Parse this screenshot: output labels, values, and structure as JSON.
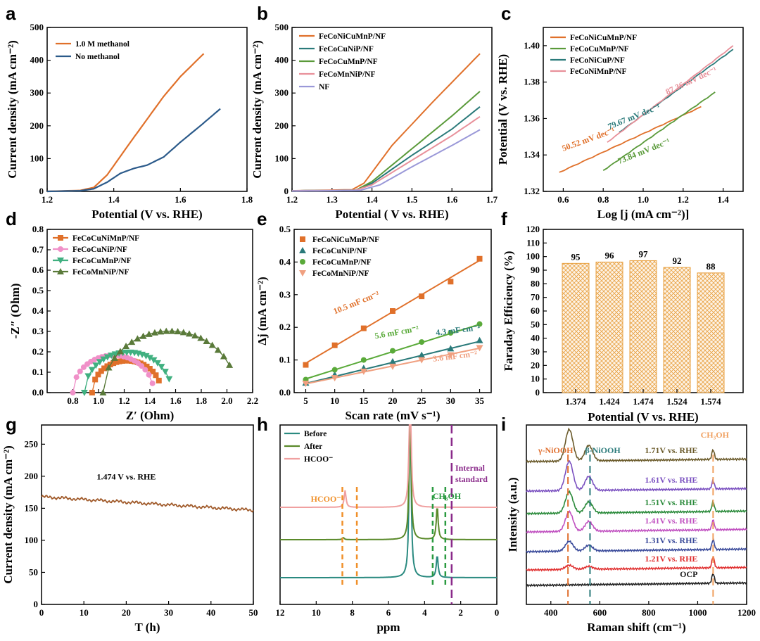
{
  "chart_data": [
    {
      "id": "a",
      "type": "line",
      "panel_label": "a",
      "xlabel": "Potential (V vs. RHE)",
      "ylabel": "Current density (mA cm⁻²)",
      "xlim": [
        1.2,
        1.8
      ],
      "ylim": [
        0,
        500
      ],
      "xticks": [
        1.2,
        1.4,
        1.6,
        1.8
      ],
      "yticks": [
        0,
        100,
        200,
        300,
        400,
        500
      ],
      "series": [
        {
          "name": "1.0 M methanol",
          "color": "#e0702a",
          "points": [
            [
              1.2,
              0
            ],
            [
              1.3,
              3
            ],
            [
              1.34,
              12
            ],
            [
              1.38,
              50
            ],
            [
              1.45,
              150
            ],
            [
              1.5,
              220
            ],
            [
              1.55,
              290
            ],
            [
              1.6,
              350
            ],
            [
              1.67,
              420
            ]
          ]
        },
        {
          "name": "No methanol",
          "color": "#2b5a8a",
          "points": [
            [
              1.2,
              0
            ],
            [
              1.3,
              2
            ],
            [
              1.34,
              8
            ],
            [
              1.38,
              28
            ],
            [
              1.42,
              55
            ],
            [
              1.46,
              70
            ],
            [
              1.5,
              80
            ],
            [
              1.55,
              105
            ],
            [
              1.6,
              150
            ],
            [
              1.66,
              200
            ],
            [
              1.72,
              252
            ]
          ]
        }
      ]
    },
    {
      "id": "b",
      "type": "line",
      "panel_label": "b",
      "xlabel": "Potential ( V vs. RHE)",
      "ylabel": "Current density (mA cm⁻²)",
      "xlim": [
        1.2,
        1.7
      ],
      "ylim": [
        0,
        500
      ],
      "xticks": [
        1.2,
        1.3,
        1.4,
        1.5,
        1.6,
        1.7
      ],
      "yticks": [
        0,
        100,
        200,
        300,
        400,
        500
      ],
      "series": [
        {
          "name": "FeCoNiCuMnP/NF",
          "color": "#e0702a",
          "points": [
            [
              1.2,
              2
            ],
            [
              1.35,
              5
            ],
            [
              1.38,
              25
            ],
            [
              1.45,
              140
            ],
            [
              1.55,
              270
            ],
            [
              1.67,
              420
            ]
          ]
        },
        {
          "name": "FeCoCuNiP/NF",
          "color": "#2a7a7a",
          "points": [
            [
              1.2,
              2
            ],
            [
              1.36,
              4
            ],
            [
              1.4,
              25
            ],
            [
              1.5,
              110
            ],
            [
              1.6,
              190
            ],
            [
              1.67,
              258
            ]
          ]
        },
        {
          "name": "FeCoCuMnP/NF",
          "color": "#5a9a3a",
          "points": [
            [
              1.2,
              2
            ],
            [
              1.36,
              4
            ],
            [
              1.4,
              30
            ],
            [
              1.5,
              130
            ],
            [
              1.6,
              230
            ],
            [
              1.67,
              305
            ]
          ]
        },
        {
          "name": "FeCoMnNiP/NF",
          "color": "#e8909a",
          "points": [
            [
              1.2,
              2
            ],
            [
              1.36,
              4
            ],
            [
              1.4,
              20
            ],
            [
              1.5,
              95
            ],
            [
              1.6,
              170
            ],
            [
              1.67,
              228
            ]
          ]
        },
        {
          "name": "NF",
          "color": "#9a98d8",
          "points": [
            [
              1.2,
              1
            ],
            [
              1.37,
              3
            ],
            [
              1.42,
              20
            ],
            [
              1.5,
              75
            ],
            [
              1.6,
              140
            ],
            [
              1.67,
              188
            ]
          ]
        }
      ]
    },
    {
      "id": "c",
      "type": "line",
      "panel_label": "c",
      "xlabel": "Log [j (mA cm⁻²)]",
      "ylabel": "Potential (V vs. RHE)",
      "xlim": [
        0.5,
        1.5
      ],
      "ylim": [
        1.32,
        1.41
      ],
      "xticks": [
        0.6,
        0.8,
        1.0,
        1.2,
        1.4
      ],
      "yticks": [
        1.32,
        1.34,
        1.36,
        1.38,
        1.4
      ],
      "series": [
        {
          "name": "FeCoNiCuMnP/NF",
          "color": "#e0702a",
          "points": [
            [
              0.58,
              1.3305
            ],
            [
              1.29,
              1.3665
            ]
          ]
        },
        {
          "name": "FeCoCuMnP/NF",
          "color": "#5a9a3a",
          "points": [
            [
              0.8,
              1.3315
            ],
            [
              1.36,
              1.3745
            ]
          ]
        },
        {
          "name": "FeCoNiCuP/NF",
          "color": "#2a7a7a",
          "points": [
            [
              0.88,
              1.3525
            ],
            [
              1.45,
              1.398
            ]
          ]
        },
        {
          "name": "FeCoNiMnP/NF",
          "color": "#e8909a",
          "points": [
            [
              0.82,
              1.347
            ],
            [
              1.45,
              1.4
            ]
          ]
        }
      ],
      "annotations": [
        {
          "text": "50.52 mV dec⁻¹",
          "color": "#e0702a",
          "x": 0.6,
          "y": 1.342,
          "rot": -20
        },
        {
          "text": "73.84 mV dec⁻¹",
          "color": "#5a9a3a",
          "x": 0.88,
          "y": 1.335,
          "rot": -22
        },
        {
          "text": "79.67 mV dec⁻¹",
          "color": "#2a7a7a",
          "x": 0.83,
          "y": 1.354,
          "rot": -22
        },
        {
          "text": "87.36 mV dec⁻¹",
          "color": "#e8909a",
          "x": 1.12,
          "y": 1.373,
          "rot": -25
        }
      ]
    },
    {
      "id": "d",
      "type": "scatter",
      "panel_label": "d",
      "xlabel": "Z′ (Ohm)",
      "ylabel": "-Z″ (Ohm)",
      "xlim": [
        0.6,
        2.2
      ],
      "ylim": [
        0,
        0.8
      ],
      "xticks": [
        0.8,
        1.0,
        1.2,
        1.4,
        1.6,
        1.8,
        2.0,
        2.2
      ],
      "yticks": [
        0.0,
        0.1,
        0.2,
        0.3,
        0.4,
        0.5,
        0.6,
        0.7,
        0.8
      ],
      "series": [
        {
          "name": "FeCoCuNiMnP/NF",
          "color": "#e0702a",
          "marker": "square",
          "center": 1.22,
          "radius": 0.27,
          "startx": 0.95,
          "endx": 1.47
        },
        {
          "name": "FeCoCuNiP/NF",
          "color": "#f090c8",
          "marker": "circle",
          "center": 1.115,
          "radius": 0.315,
          "startx": 0.8,
          "endx": 1.42
        },
        {
          "name": "FeCoCuMnP/NF",
          "color": "#40b080",
          "marker": "tridown",
          "center": 1.23,
          "radius": 0.34,
          "startx": 0.89,
          "endx": 1.55
        },
        {
          "name": "FeCoMnNiP/NF",
          "color": "#5a7a3a",
          "marker": "triup",
          "center": 1.555,
          "radius": 0.52,
          "startx": 1.035,
          "endx": 2.02
        }
      ]
    },
    {
      "id": "e",
      "type": "scatter",
      "panel_label": "e",
      "xlabel": "Scan rate (mV s⁻¹)",
      "ylabel": "Δj (mA cm⁻²)",
      "xlim": [
        3,
        37
      ],
      "ylim": [
        0,
        0.5
      ],
      "xticks": [
        5,
        10,
        15,
        20,
        25,
        30,
        35
      ],
      "yticks": [
        0.0,
        0.1,
        0.2,
        0.3,
        0.4,
        0.5
      ],
      "x": [
        5,
        10,
        15,
        20,
        25,
        30,
        35
      ],
      "series": [
        {
          "name": "FeCoNiCuMnP/NF",
          "color": "#e0702a",
          "marker": "square",
          "values": [
            0.085,
            0.145,
            0.197,
            0.25,
            0.295,
            0.34,
            0.41
          ],
          "fit": [
            [
              5,
              0.09
            ],
            [
              35,
              0.405
            ]
          ]
        },
        {
          "name": "FeCoCuNiP/NF",
          "color": "#2a7a7a",
          "marker": "triup",
          "values": [
            0.03,
            0.055,
            0.075,
            0.095,
            0.115,
            0.135,
            0.16
          ],
          "fit": [
            [
              5,
              0.028
            ],
            [
              35,
              0.157
            ]
          ]
        },
        {
          "name": "FeCoCuMnP/NF",
          "color": "#5aaa3a",
          "marker": "circle",
          "values": [
            0.04,
            0.07,
            0.1,
            0.128,
            0.155,
            0.183,
            0.21
          ],
          "fit": [
            [
              5,
              0.042
            ],
            [
              35,
              0.209
            ]
          ]
        },
        {
          "name": "FeCoMnNiP/NF",
          "color": "#f0a080",
          "marker": "tridown",
          "values": [
            0.028,
            0.045,
            0.065,
            0.08,
            0.1,
            0.115,
            0.137
          ],
          "fit": [
            [
              5,
              0.027
            ],
            [
              35,
              0.136
            ]
          ]
        }
      ],
      "annotations": [
        {
          "text": "10.5 mF cm⁻²",
          "color": "#e0702a",
          "x": 10,
          "y": 0.24,
          "rot": -22
        },
        {
          "text": "5.6 mF cm⁻²",
          "color": "#5aaa3a",
          "x": 17,
          "y": 0.165,
          "rot": -10
        },
        {
          "text": "4.3 mF cm⁻²",
          "color": "#2a7a7a",
          "x": 27.5,
          "y": 0.175,
          "rot": -7
        },
        {
          "text": "3.6 mF cm⁻²",
          "color": "#f0a080",
          "x": 27,
          "y": 0.095,
          "rot": -7
        }
      ]
    },
    {
      "id": "f",
      "type": "bar",
      "panel_label": "f",
      "xlabel": "Potential (V vs. RHE)",
      "ylabel": "Faraday Efficiency (%)",
      "categories": [
        "1.374",
        "1.424",
        "1.474",
        "1.524",
        "1.574"
      ],
      "values": [
        95,
        96,
        97,
        92,
        88
      ],
      "ylim": [
        0,
        120
      ],
      "yticks": [
        0,
        10,
        20,
        30,
        40,
        50,
        60,
        70,
        80,
        90,
        100,
        110,
        120
      ],
      "color": "#e8a040"
    },
    {
      "id": "g",
      "type": "line",
      "panel_label": "g",
      "xlabel": "T (h)",
      "ylabel": "Current density (mA cm⁻²)",
      "xlim": [
        0,
        50
      ],
      "ylim": [
        0,
        280
      ],
      "xticks": [
        0,
        10,
        20,
        30,
        40,
        50
      ],
      "yticks": [
        0,
        50,
        100,
        150,
        200,
        250
      ],
      "annotation": "1.474 V vs. RHE",
      "series": [
        {
          "name": "1.474 V vs. RHE",
          "color": "#a05a2a",
          "start": 168,
          "end": 147
        }
      ]
    },
    {
      "id": "h",
      "type": "line",
      "panel_label": "h",
      "xlabel": "ppm",
      "xlim": [
        12,
        0
      ],
      "xticks": [
        12,
        10,
        8,
        6,
        4,
        2,
        0
      ],
      "series": [
        {
          "name": "Before",
          "color": "#2a8a80",
          "baseline": 38,
          "peaks": [
            [
              4.8,
              260
            ],
            [
              3.3,
              32
            ]
          ]
        },
        {
          "name": "After",
          "color": "#5a8a2a",
          "baseline": 92,
          "peaks": [
            [
              4.8,
              200
            ],
            [
              3.3,
              48
            ],
            [
              8.5,
              3
            ]
          ]
        },
        {
          "name": "HCOO⁻",
          "color": "#f0a0a0",
          "baseline": 138,
          "peaks": [
            [
              4.8,
              200
            ],
            [
              8.4,
              24
            ]
          ]
        }
      ],
      "annotations": [
        {
          "text": "HCOO⁻",
          "color": "#f0902a"
        },
        {
          "text": "CH₃OH",
          "color": "#2a9a40"
        },
        {
          "text": "Internal",
          "color": "#8a2a8a"
        },
        {
          "text": "standard",
          "color": "#8a2a8a"
        }
      ]
    },
    {
      "id": "i",
      "type": "line",
      "panel_label": "i",
      "xlabel": "Raman shift (cm⁻¹)",
      "ylabel": "Intensity (a.u.)",
      "xlim": [
        300,
        1200
      ],
      "xticks": [
        400,
        600,
        800,
        1000,
        1200
      ],
      "peak_labels": [
        {
          "text": "γ-NiOOH",
          "color": "#e07030"
        },
        {
          "text": "β-NiOOH",
          "color": "#2a7a7a"
        },
        {
          "text": "CH₃OH",
          "color": "#f0a060"
        }
      ],
      "series": [
        {
          "name": "OCP",
          "color": "#202020"
        },
        {
          "name": "1.21V vs. RHE",
          "color": "#e03030"
        },
        {
          "name": "1.31V vs. RHE",
          "color": "#3a4a9a"
        },
        {
          "name": "1.41V vs. RHE",
          "color": "#c050c0"
        },
        {
          "name": "1.51V vs. RHE",
          "color": "#2a8a3a"
        },
        {
          "name": "1.61V vs. RHE",
          "color": "#7a50c0"
        },
        {
          "name": "1.71V vs. RHE",
          "color": "#6a5a2a"
        }
      ]
    }
  ]
}
